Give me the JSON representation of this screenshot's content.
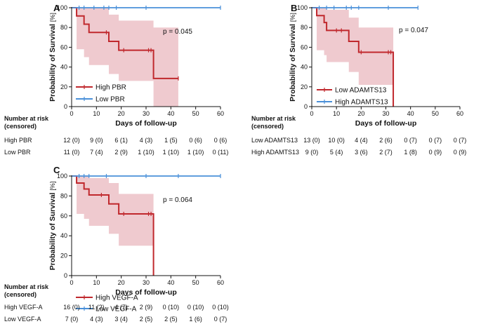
{
  "colors": {
    "high_line": "#c0282d",
    "low_line": "#4a90d9",
    "ci_fill": "#e9b8bf",
    "axis": "#111111"
  },
  "x_axis": {
    "label": "Days of follow-up",
    "ticks": [
      "0",
      "10",
      "20",
      "30",
      "40",
      "50",
      "60"
    ]
  },
  "y_axis": {
    "label_prefix": "Probability of Survival",
    "label_unit": "[%]",
    "ticks": [
      "0",
      "20",
      "40",
      "60",
      "80",
      "100"
    ]
  },
  "risk_table_heading": {
    "line1": "Number at risk",
    "line2": "(censored)"
  },
  "chart_data": [
    {
      "type": "line",
      "panel": "A",
      "title": "",
      "xlabel": "Days of follow-up",
      "ylabel": "Probability of Survival [%]",
      "xlim": [
        0,
        60
      ],
      "ylim": [
        0,
        100
      ],
      "p_value": "p = 0.045",
      "legend_position": "bottom-left",
      "series": [
        {
          "name": "High PBR",
          "color": "#c0282d",
          "steps": [
            [
              0,
              100
            ],
            [
              2,
              91.7
            ],
            [
              5,
              83.3
            ],
            [
              7,
              75
            ],
            [
              15,
              66
            ],
            [
              19,
              57
            ],
            [
              33,
              28.5
            ],
            [
              43,
              28.5
            ]
          ],
          "ci_upper": [
            [
              0,
              100
            ],
            [
              2,
              100
            ],
            [
              5,
              100
            ],
            [
              7,
              100
            ],
            [
              15,
              93
            ],
            [
              19,
              87
            ],
            [
              33,
              80
            ],
            [
              43,
              80
            ]
          ],
          "ci_lower": [
            [
              0,
              100
            ],
            [
              2,
              58
            ],
            [
              5,
              50
            ],
            [
              7,
              42
            ],
            [
              15,
              33
            ],
            [
              19,
              26
            ],
            [
              33,
              0
            ],
            [
              43,
              0
            ]
          ],
          "censor_marks": [
            [
              14,
              75
            ],
            [
              21,
              57
            ],
            [
              31,
              57
            ],
            [
              32,
              57
            ],
            [
              43,
              28.5
            ]
          ]
        },
        {
          "name": "Low PBR",
          "color": "#4a90d9",
          "steps": [
            [
              0,
              100
            ],
            [
              60,
              100
            ]
          ],
          "censor_marks": [
            [
              3,
              100
            ],
            [
              5,
              100
            ],
            [
              9,
              100
            ],
            [
              13,
              100
            ],
            [
              15,
              100
            ],
            [
              18,
              100
            ],
            [
              30,
              100
            ],
            [
              60,
              100
            ]
          ]
        }
      ],
      "risk_table": {
        "rows": [
          {
            "label": "High PBR",
            "values": [
              "12 (0)",
              "9 (0)",
              "6 (1)",
              "4 (3)",
              "1 (5)",
              "0 (6)",
              "0 (6)"
            ]
          },
          {
            "label": "Low PBR",
            "values": [
              "11 (0)",
              "7 (4)",
              "2 (9)",
              "1 (10)",
              "1 (10)",
              "1 (10)",
              "0 (11)"
            ]
          }
        ]
      }
    },
    {
      "type": "line",
      "panel": "B",
      "title": "",
      "xlabel": "Days of follow-up",
      "ylabel": "Probability of Survival [%]",
      "xlim": [
        0,
        60
      ],
      "ylim": [
        0,
        100
      ],
      "p_value": "p = 0.047",
      "legend_position": "bottom-left",
      "series": [
        {
          "name": "Low ADAMTS13",
          "color": "#c0282d",
          "steps": [
            [
              0,
              100
            ],
            [
              2,
              92
            ],
            [
              5,
              85
            ],
            [
              6,
              77
            ],
            [
              15,
              66
            ],
            [
              19,
              55
            ],
            [
              33,
              0
            ]
          ],
          "ci_upper": [
            [
              0,
              100
            ],
            [
              2,
              100
            ],
            [
              5,
              100
            ],
            [
              6,
              98
            ],
            [
              15,
              90
            ],
            [
              19,
              80
            ],
            [
              33,
              80
            ]
          ],
          "ci_lower": [
            [
              0,
              100
            ],
            [
              2,
              57
            ],
            [
              5,
              52
            ],
            [
              6,
              45
            ],
            [
              15,
              35
            ],
            [
              19,
              22
            ],
            [
              33,
              22
            ]
          ],
          "censor_marks": [
            [
              10,
              77
            ],
            [
              12,
              77
            ],
            [
              20,
              55
            ],
            [
              31,
              55
            ],
            [
              32,
              55
            ]
          ]
        },
        {
          "name": "High ADAMTS13",
          "color": "#4a90d9",
          "steps": [
            [
              0,
              100
            ],
            [
              43,
              100
            ]
          ],
          "censor_marks": [
            [
              3,
              100
            ],
            [
              6,
              100
            ],
            [
              9,
              100
            ],
            [
              14,
              100
            ],
            [
              16,
              100
            ],
            [
              19,
              100
            ],
            [
              31,
              100
            ],
            [
              43,
              100
            ]
          ]
        }
      ],
      "risk_table": {
        "rows": [
          {
            "label": "Low ADAMTS13",
            "values": [
              "13 (0)",
              "10 (0)",
              "4 (4)",
              "2 (6)",
              "0 (7)",
              "0 (7)",
              "0 (7)"
            ]
          },
          {
            "label": "High ADAMTS13",
            "values": [
              "9 (0)",
              "5 (4)",
              "3 (6)",
              "2 (7)",
              "1 (8)",
              "0 (9)",
              "0 (9)"
            ]
          }
        ]
      }
    },
    {
      "type": "line",
      "panel": "C",
      "title": "",
      "xlabel": "Days of follow-up",
      "ylabel": "Probability of Survival [%]",
      "xlim": [
        0,
        60
      ],
      "ylim": [
        0,
        100
      ],
      "p_value": "p = 0.064",
      "legend_position": "bottom-left",
      "series": [
        {
          "name": "High VEGF-A",
          "color": "#c0282d",
          "steps": [
            [
              0,
              100
            ],
            [
              2,
              93
            ],
            [
              5,
              87
            ],
            [
              7,
              81
            ],
            [
              15,
              72
            ],
            [
              19,
              62
            ],
            [
              33,
              0
            ]
          ],
          "ci_upper": [
            [
              0,
              100
            ],
            [
              2,
              100
            ],
            [
              5,
              100
            ],
            [
              7,
              98
            ],
            [
              15,
              93
            ],
            [
              19,
              82
            ],
            [
              33,
              82
            ]
          ],
          "ci_lower": [
            [
              0,
              100
            ],
            [
              2,
              62
            ],
            [
              5,
              57
            ],
            [
              7,
              50
            ],
            [
              15,
              42
            ],
            [
              19,
              30
            ],
            [
              33,
              30
            ]
          ],
          "censor_marks": [
            [
              12,
              81
            ],
            [
              21,
              62
            ],
            [
              31,
              62
            ],
            [
              32,
              62
            ]
          ]
        },
        {
          "name": "Low VEGF-A",
          "color": "#4a90d9",
          "steps": [
            [
              0,
              100
            ],
            [
              60,
              100
            ]
          ],
          "censor_marks": [
            [
              3,
              100
            ],
            [
              5,
              100
            ],
            [
              7,
              100
            ],
            [
              14,
              100
            ],
            [
              30,
              100
            ],
            [
              43,
              100
            ],
            [
              60,
              100
            ]
          ]
        }
      ],
      "risk_table": {
        "rows": [
          {
            "label": "High VEGF-A",
            "values": [
              "16 (0)",
              "11 (2)",
              "4 (7)",
              "2 (9)",
              "0 (10)",
              "0 (10)",
              "0 (10)"
            ]
          },
          {
            "label": "Low VEGF-A",
            "values": [
              "7 (0)",
              "4 (3)",
              "3 (4)",
              "2 (5)",
              "2 (5)",
              "1 (6)",
              "0 (7)"
            ]
          }
        ]
      }
    }
  ]
}
